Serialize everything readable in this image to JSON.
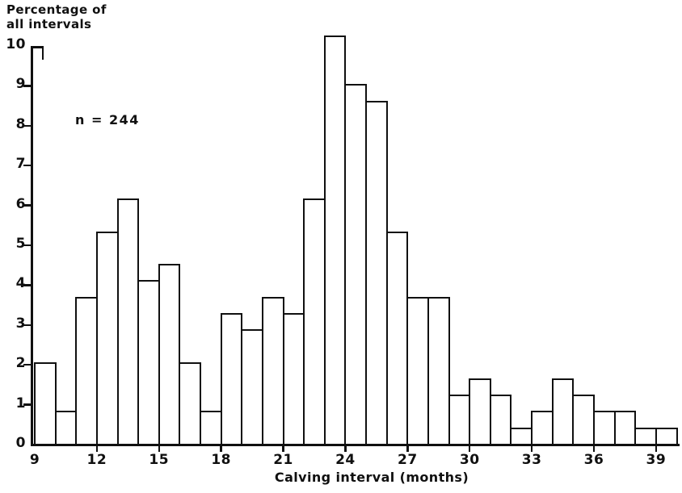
{
  "figure": {
    "y_axis_title_line1": "Percentage of",
    "y_axis_title_line2": "all intervals",
    "annotation": "n = 244",
    "x_axis_title": "Calving interval (months)",
    "colors": {
      "ink": "#101010",
      "paper": "#ffffff"
    }
  },
  "chart_data": {
    "type": "bar",
    "title": "",
    "xlabel": "Calving interval (months)",
    "ylabel": "Percentage of all intervals",
    "annotation": "n = 244",
    "sample_size": 244,
    "bin_width_months": 1,
    "bin_start_months": [
      9,
      10,
      11,
      12,
      13,
      14,
      15,
      16,
      17,
      18,
      19,
      20,
      21,
      22,
      23,
      24,
      25,
      26,
      27,
      28,
      29,
      30,
      31,
      32,
      33,
      34,
      35,
      36,
      37,
      38,
      39
    ],
    "counts": [
      5,
      2,
      9,
      13,
      15,
      10,
      11,
      5,
      2,
      8,
      7,
      9,
      8,
      15,
      25,
      22,
      21,
      13,
      9,
      9,
      3,
      4,
      3,
      1,
      2,
      4,
      3,
      2,
      2,
      1,
      1
    ],
    "values_percent": [
      2.05,
      0.82,
      3.69,
      5.33,
      6.15,
      4.1,
      4.51,
      2.05,
      0.82,
      3.28,
      2.87,
      3.69,
      3.28,
      6.15,
      10.25,
      9.02,
      8.61,
      5.33,
      3.69,
      3.69,
      1.23,
      1.64,
      1.23,
      0.41,
      0.82,
      1.64,
      1.23,
      0.82,
      0.82,
      0.41,
      0.41
    ],
    "x_tick_labels": [
      9,
      12,
      15,
      18,
      21,
      24,
      27,
      30,
      33,
      36,
      39
    ],
    "y_tick_values": [
      0,
      1,
      2,
      3,
      4,
      5,
      6,
      7,
      8,
      9,
      10
    ],
    "xlim": [
      9,
      40
    ],
    "ylim": [
      0,
      10
    ],
    "grid": false,
    "legend": null,
    "bar_fill": "#ffffff",
    "bar_outline": "#101010"
  }
}
